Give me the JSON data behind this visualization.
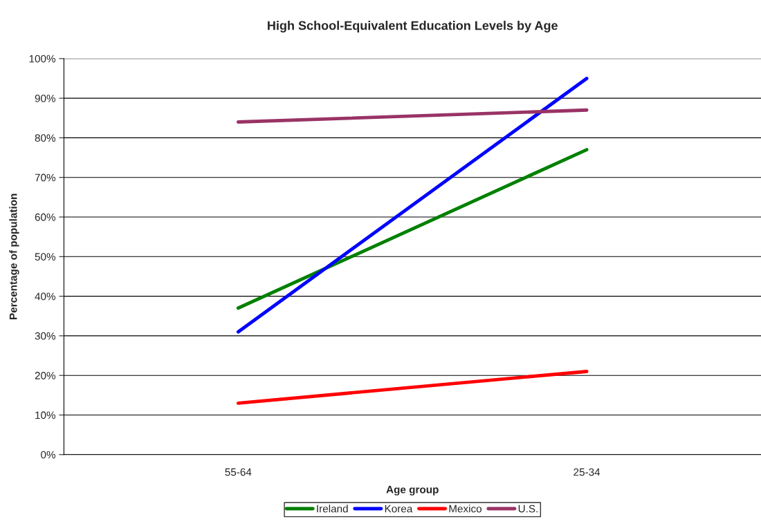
{
  "chart_data": {
    "type": "line",
    "title": "High School-Equivalent Education Levels by Age",
    "xlabel": "Age group",
    "ylabel": "Percentage of population",
    "categories": [
      "55-64",
      "25-34"
    ],
    "series": [
      {
        "name": "Ireland",
        "color": "#008000",
        "values": [
          37,
          77
        ]
      },
      {
        "name": "Korea",
        "color": "#0000ff",
        "values": [
          31,
          95
        ]
      },
      {
        "name": "Mexico",
        "color": "#ff0000",
        "values": [
          13,
          21
        ]
      },
      {
        "name": "U.S.",
        "color": "#993366",
        "values": [
          84,
          87
        ]
      }
    ],
    "ylim": [
      0,
      100
    ],
    "yticks": [
      {
        "value": 0,
        "label": "0%"
      },
      {
        "value": 10,
        "label": "10%"
      },
      {
        "value": 20,
        "label": "20%"
      },
      {
        "value": 30,
        "label": "30%"
      },
      {
        "value": 40,
        "label": "40%"
      },
      {
        "value": 50,
        "label": "50%"
      },
      {
        "value": 60,
        "label": "60%"
      },
      {
        "value": 70,
        "label": "70%"
      },
      {
        "value": 80,
        "label": "80%"
      },
      {
        "value": 90,
        "label": "90%"
      },
      {
        "value": 100,
        "label": "100%"
      }
    ],
    "grid": "y",
    "legend": "bottom",
    "marker": "none",
    "line_style": "solid"
  }
}
